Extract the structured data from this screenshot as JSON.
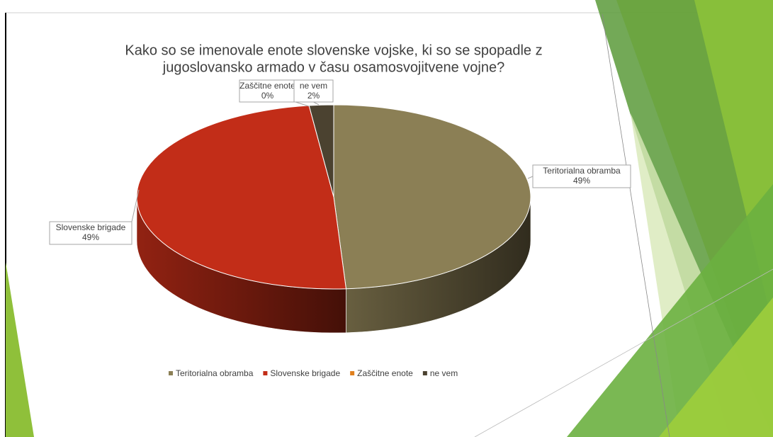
{
  "chart_data": {
    "type": "pie3d",
    "title": [
      "Kako so se imenovale enote slovenske vojske, ki so se spopadle z",
      "jugoslovansko armado v času osamosvojitvene vojne?"
    ],
    "categories": [
      "Teritorialna obramba",
      "Slovenske brigade",
      "Zaščitne enote",
      "ne vem"
    ],
    "values": [
      49,
      49,
      0,
      2
    ],
    "value_labels": [
      "49%",
      "49%",
      "0%",
      "2%"
    ],
    "colors": [
      "#8b7f55",
      "#c22d18",
      "#e0801e",
      "#4b4230"
    ],
    "legend": "bottom"
  }
}
